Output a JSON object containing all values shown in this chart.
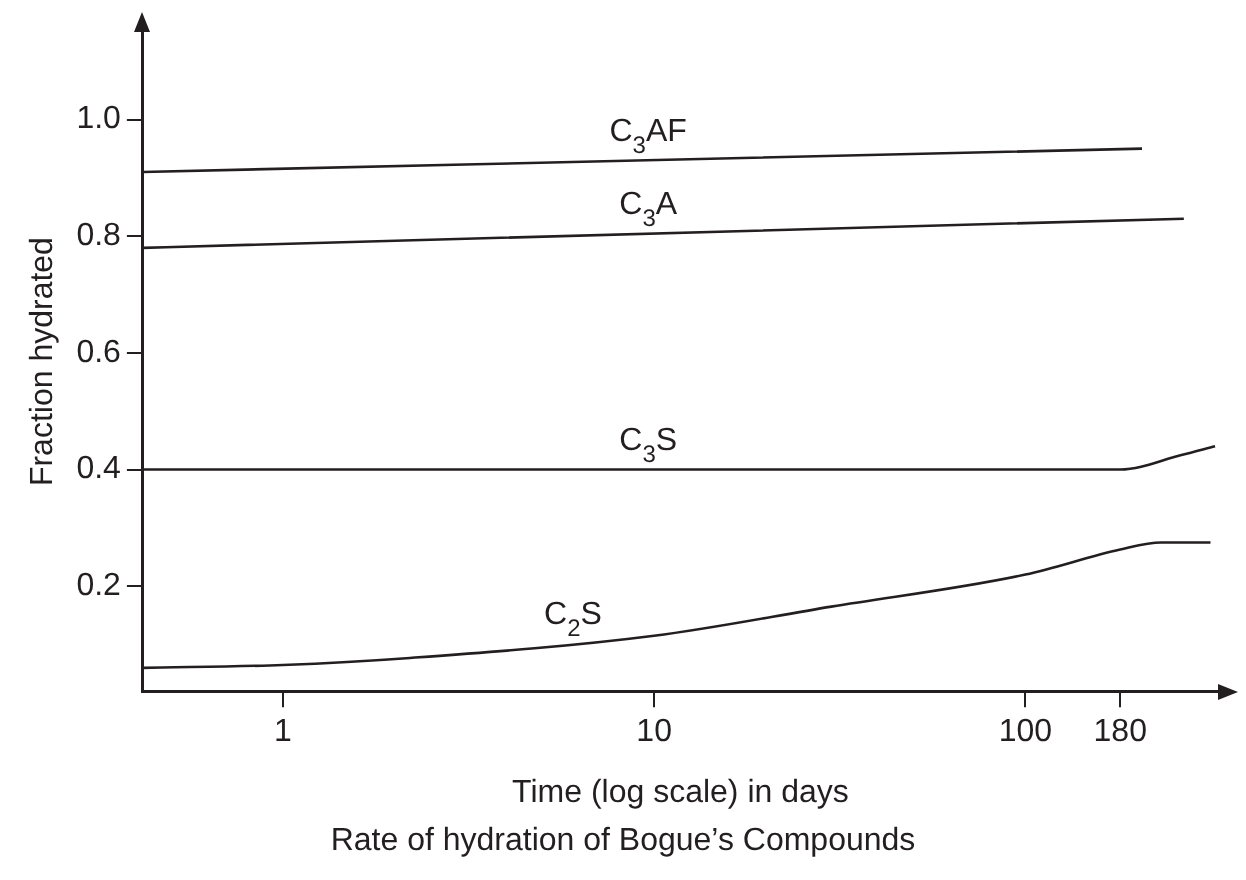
{
  "chart_data": {
    "type": "line",
    "xlabel": "Time (log scale) in days",
    "ylabel": "Fraction hydrated",
    "annotations": [
      "Rate of hydration of Bogue’s Compounds"
    ],
    "log": "x",
    "xlim": [
      0.42,
      330
    ],
    "xticks": [
      1,
      10,
      100,
      180
    ],
    "ylim": [
      0.02,
      1.15
    ],
    "yticks": [
      {
        "value": 0.2,
        "label": "0.2"
      },
      {
        "value": 0.4,
        "label": "0.4"
      },
      {
        "value": 0.6,
        "label": "0.6"
      },
      {
        "value": 0.8,
        "label": "0.8"
      },
      {
        "value": 1.0,
        "label": "1.0"
      }
    ],
    "grid": false,
    "legend": false,
    "marker": "none",
    "line_style": "solid",
    "series": [
      {
        "name": "C$_{3}$AF",
        "color": "#231f20",
        "x": [
          0.42,
          206
        ],
        "values": [
          0.91,
          0.95
        ]
      },
      {
        "name": "C$_{3}$A",
        "color": "#231f20",
        "x": [
          0.42,
          267
        ],
        "values": [
          0.78,
          0.83
        ]
      },
      {
        "name": "C$_{3}$S",
        "color": "#231f20",
        "x": [
          0.42,
          180,
          263,
          324
        ],
        "values": [
          0.4,
          0.4,
          0.425,
          0.44
        ]
      },
      {
        "name": "C$_{2}$S",
        "color": "#231f20",
        "x": [
          0.42,
          1,
          2.2,
          10,
          30,
          100,
          180,
          232,
          315
        ],
        "values": [
          0.06,
          0.065,
          0.077,
          0.115,
          0.165,
          0.22,
          0.263,
          0.275,
          0.275
        ]
      }
    ]
  }
}
